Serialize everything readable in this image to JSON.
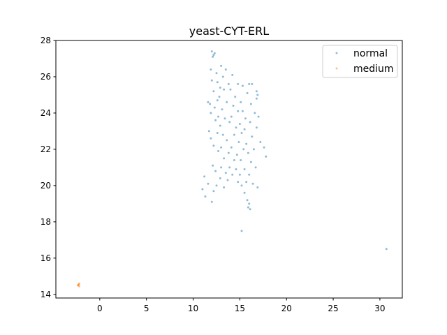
{
  "chart_data": {
    "type": "scatter",
    "title": "yeast-CYT-ERL",
    "xlabel": "",
    "ylabel": "",
    "xlim": [
      -4.7,
      32.4
    ],
    "ylim": [
      13.8,
      28.0
    ],
    "xticks": [
      0,
      5,
      10,
      15,
      20,
      25,
      30
    ],
    "yticks": [
      14,
      16,
      18,
      20,
      22,
      24,
      26,
      28
    ],
    "grid": false,
    "legend_position": "top-right",
    "series": [
      {
        "name": "normal",
        "color": "#1f77b4",
        "points": [
          [
            12.0,
            27.4
          ],
          [
            12.2,
            27.2
          ],
          [
            12.3,
            27.3
          ],
          [
            12.1,
            27.1
          ],
          [
            13.0,
            26.6
          ],
          [
            13.5,
            26.4
          ],
          [
            11.9,
            26.4
          ],
          [
            12.5,
            26.2
          ],
          [
            13.2,
            26.0
          ],
          [
            14.2,
            26.1
          ],
          [
            12.0,
            25.8
          ],
          [
            12.6,
            25.7
          ],
          [
            13.8,
            25.6
          ],
          [
            14.8,
            25.6
          ],
          [
            16.0,
            25.6
          ],
          [
            16.3,
            25.6
          ],
          [
            15.3,
            25.5
          ],
          [
            12.9,
            25.4
          ],
          [
            13.3,
            25.3
          ],
          [
            14.0,
            25.3
          ],
          [
            12.2,
            25.2
          ],
          [
            15.8,
            25.1
          ],
          [
            16.8,
            25.2
          ],
          [
            16.9,
            25.0
          ],
          [
            16.8,
            24.8
          ],
          [
            12.8,
            24.9
          ],
          [
            14.5,
            24.9
          ],
          [
            11.6,
            24.6
          ],
          [
            11.8,
            24.5
          ],
          [
            12.6,
            24.7
          ],
          [
            13.6,
            24.6
          ],
          [
            15.1,
            24.6
          ],
          [
            16.2,
            24.5
          ],
          [
            14.3,
            24.4
          ],
          [
            12.3,
            24.3
          ],
          [
            13.1,
            24.2
          ],
          [
            14.8,
            24.1
          ],
          [
            15.3,
            24.1
          ],
          [
            16.6,
            24.0
          ],
          [
            11.9,
            24.0
          ],
          [
            12.7,
            23.8
          ],
          [
            13.4,
            23.7
          ],
          [
            14.1,
            23.8
          ],
          [
            15.6,
            23.7
          ],
          [
            17.0,
            23.8
          ],
          [
            12.4,
            23.6
          ],
          [
            13.9,
            23.5
          ],
          [
            15.0,
            23.4
          ],
          [
            16.1,
            23.5
          ],
          [
            12.9,
            23.3
          ],
          [
            14.6,
            23.2
          ],
          [
            15.5,
            23.1
          ],
          [
            16.8,
            23.2
          ],
          [
            11.7,
            23.0
          ],
          [
            12.6,
            22.9
          ],
          [
            13.2,
            22.8
          ],
          [
            14.4,
            22.8
          ],
          [
            15.2,
            22.9
          ],
          [
            16.3,
            22.7
          ],
          [
            11.9,
            22.6
          ],
          [
            13.6,
            22.5
          ],
          [
            14.9,
            22.4
          ],
          [
            15.7,
            22.3
          ],
          [
            17.2,
            22.4
          ],
          [
            12.2,
            22.2
          ],
          [
            13.0,
            22.1
          ],
          [
            14.1,
            22.1
          ],
          [
            15.4,
            22.0
          ],
          [
            16.5,
            22.0
          ],
          [
            17.6,
            22.1
          ],
          [
            12.7,
            21.9
          ],
          [
            13.8,
            21.8
          ],
          [
            14.7,
            21.7
          ],
          [
            15.9,
            21.8
          ],
          [
            17.8,
            21.6
          ],
          [
            13.3,
            21.5
          ],
          [
            14.4,
            21.4
          ],
          [
            15.1,
            21.4
          ],
          [
            16.2,
            21.3
          ],
          [
            12.1,
            21.1
          ],
          [
            13.0,
            21.0
          ],
          [
            13.9,
            21.0
          ],
          [
            14.6,
            20.9
          ],
          [
            15.5,
            20.9
          ],
          [
            16.7,
            21.0
          ],
          [
            12.4,
            20.8
          ],
          [
            13.5,
            20.7
          ],
          [
            14.2,
            20.6
          ],
          [
            15.0,
            20.6
          ],
          [
            16.0,
            20.6
          ],
          [
            11.2,
            20.5
          ],
          [
            12.9,
            20.4
          ],
          [
            13.7,
            20.3
          ],
          [
            14.8,
            20.2
          ],
          [
            15.7,
            20.2
          ],
          [
            16.4,
            20.1
          ],
          [
            11.6,
            20.1
          ],
          [
            12.5,
            20.0
          ],
          [
            13.3,
            19.9
          ],
          [
            15.2,
            20.0
          ],
          [
            16.9,
            19.9
          ],
          [
            11.0,
            19.8
          ],
          [
            12.2,
            19.7
          ],
          [
            15.5,
            19.6
          ],
          [
            11.3,
            19.4
          ],
          [
            12.0,
            19.1
          ],
          [
            15.8,
            19.2
          ],
          [
            16.0,
            19.0
          ],
          [
            15.9,
            18.8
          ],
          [
            16.1,
            18.7
          ],
          [
            15.2,
            17.5
          ],
          [
            30.7,
            16.5
          ]
        ]
      },
      {
        "name": "medium",
        "color": "#ff7f0e",
        "points": [
          [
            -2.3,
            14.5
          ],
          [
            -2.2,
            14.6
          ],
          [
            -2.25,
            14.55
          ],
          [
            -2.35,
            14.5
          ],
          [
            -2.2,
            14.45
          ]
        ]
      }
    ]
  }
}
